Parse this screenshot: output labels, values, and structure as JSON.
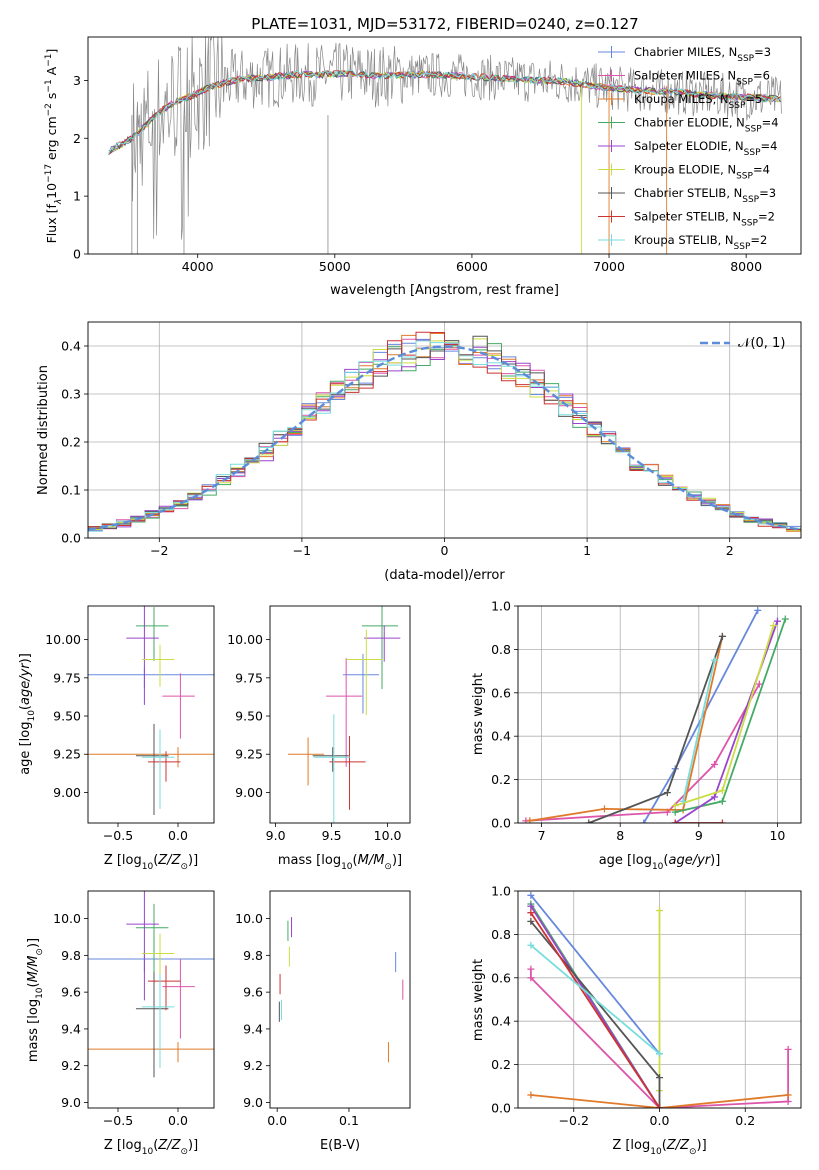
{
  "figure": {
    "title": "PLATE=1031, MJD=53172, FIBERID=0240, z=0.127"
  },
  "colors": {
    "c_miles": "#6688dd",
    "s_miles": "#dd55aa",
    "k_miles": "#e07a2a",
    "c_elodie": "#44aa66",
    "s_elodie": "#9944cc",
    "k_elodie": "#ccdd44",
    "c_stelib": "#555555",
    "s_stelib": "#cc3333",
    "k_stelib": "#77dddd",
    "grey": "#888888",
    "norm": "#5b8dd9",
    "grid": "#b0b0b0"
  },
  "chart_data": [
    {
      "id": "spectrum",
      "type": "line",
      "xlabel": "wavelength [Angstrom, rest frame]",
      "ylabel_parts": [
        "Flux [f",
        "λ",
        "10",
        "−17",
        " erg cm",
        "−2",
        " s",
        "−1",
        " A",
        "−1",
        "]"
      ],
      "xlim": [
        3200,
        8400
      ],
      "ylim": [
        0,
        3.75
      ],
      "xticks": [
        4000,
        5000,
        6000,
        7000,
        8000
      ],
      "yticks": [
        0,
        1,
        2,
        3
      ],
      "grid": false,
      "legend": "right",
      "legend_entries": [
        {
          "pre": "Chabrier MILES, N",
          "sub": "SSP",
          "post": "=3",
          "color": "c_miles"
        },
        {
          "pre": "Salpeter MILES, N",
          "sub": "SSP",
          "post": "=6",
          "color": "s_miles"
        },
        {
          "pre": "Kroupa MILES, N",
          "sub": "SSP",
          "post": "=5",
          "color": "k_miles"
        },
        {
          "pre": "Chabrier ELODIE, N",
          "sub": "SSP",
          "post": "=4",
          "color": "c_elodie"
        },
        {
          "pre": "Salpeter ELODIE, N",
          "sub": "SSP",
          "post": "=4",
          "color": "s_elodie"
        },
        {
          "pre": "Kroupa ELODIE, N",
          "sub": "SSP",
          "post": "=4",
          "color": "k_elodie"
        },
        {
          "pre": "Chabrier STELIB, N",
          "sub": "SSP",
          "post": "=3",
          "color": "c_stelib"
        },
        {
          "pre": "Salpeter STELIB, N",
          "sub": "SSP",
          "post": "=2",
          "color": "s_stelib"
        },
        {
          "pre": "Kroupa STELIB, N",
          "sub": "SSP",
          "post": "=2",
          "color": "k_stelib"
        }
      ],
      "data_points": [
        [
          3350,
          1.78
        ],
        [
          3450,
          1.9
        ],
        [
          3550,
          2.05
        ],
        [
          3650,
          2.3
        ],
        [
          3750,
          2.5
        ],
        [
          3850,
          2.65
        ],
        [
          3950,
          2.72
        ],
        [
          4100,
          2.9
        ],
        [
          4300,
          3.02
        ],
        [
          4500,
          3.05
        ],
        [
          4700,
          3.1
        ],
        [
          4900,
          3.1
        ],
        [
          5100,
          3.12
        ],
        [
          5300,
          3.08
        ],
        [
          5500,
          3.1
        ],
        [
          5700,
          3.1
        ],
        [
          5900,
          3.08
        ],
        [
          6100,
          3.05
        ],
        [
          6300,
          3.02
        ],
        [
          6500,
          3.0
        ],
        [
          6700,
          2.98
        ],
        [
          6900,
          2.9
        ],
        [
          7100,
          2.85
        ],
        [
          7300,
          2.82
        ],
        [
          7500,
          2.8
        ],
        [
          7700,
          2.75
        ],
        [
          7900,
          2.72
        ],
        [
          8100,
          2.7
        ],
        [
          8250,
          2.68
        ]
      ]
    },
    {
      "id": "residuals",
      "type": "line",
      "xlabel": "(data-model)/error",
      "ylabel": "Normed distribution",
      "xlim": [
        -2.5,
        2.5
      ],
      "ylim": [
        0,
        0.45
      ],
      "xticks": [
        -2,
        -1,
        0,
        1,
        2
      ],
      "yticks": [
        0.0,
        0.1,
        0.2,
        0.3,
        0.4
      ],
      "xtick_labels": [
        "−2",
        "−1",
        "0",
        "1",
        "2"
      ],
      "yticks_labels": [
        "0.0",
        "0.1",
        "0.2",
        "0.3",
        "0.4"
      ],
      "grid": true,
      "legend": "top-right",
      "legend_entry": "𝒩(0, 1)",
      "bin_width": 0.1
    },
    {
      "id": "age_Z",
      "type": "scatter",
      "xlabel": "Z [log10(Z/Z⊙)]",
      "ylabel": "age  [log10(age/yr)]",
      "xlim": [
        -0.75,
        0.3
      ],
      "ylim": [
        8.8,
        10.22
      ],
      "xticks": [
        -0.5,
        0.0
      ],
      "yticks": [
        9.0,
        9.25,
        9.5,
        9.75,
        10.0
      ],
      "xtick_labels": [
        "−0.5",
        "0.0"
      ],
      "ytick_labels": [
        "9.00",
        "9.25",
        "9.50",
        "9.75",
        "10.00"
      ]
    },
    {
      "id": "age_mass",
      "type": "scatter",
      "xlabel": "mass [log10(M/M⊙)]",
      "xlim": [
        8.95,
        10.2
      ],
      "ylim": [
        8.8,
        10.22
      ],
      "xticks": [
        9.0,
        9.5,
        10.0
      ],
      "yticks": [
        9.0,
        9.25,
        9.5,
        9.75,
        10.0
      ],
      "xtick_labels": [
        "9.0",
        "9.5",
        "10.0"
      ],
      "ytick_labels": [
        "9.00",
        "9.25",
        "9.50",
        "9.75",
        "10.00"
      ]
    },
    {
      "id": "weight_age",
      "type": "line",
      "xlabel": "age  [log10(age/yr)]",
      "ylabel": "mass weight",
      "xlim": [
        6.7,
        10.3
      ],
      "ylim": [
        0,
        1.0
      ],
      "xticks": [
        7,
        8,
        9,
        10
      ],
      "yticks": [
        0.0,
        0.2,
        0.4,
        0.6,
        0.8,
        1.0
      ],
      "xtick_labels": [
        "7",
        "8",
        "9",
        "10"
      ],
      "ytick_labels": [
        "0.0",
        "0.2",
        "0.4",
        "0.6",
        "0.8",
        "1.0"
      ],
      "grid": true,
      "series": [
        {
          "color": "c_miles",
          "x": [
            8.3,
            8.7,
            9.75
          ],
          "y": [
            0.0,
            0.25,
            0.98
          ]
        },
        {
          "color": "s_miles",
          "x": [
            6.8,
            8.6,
            9.2,
            9.77
          ],
          "y": [
            0.01,
            0.05,
            0.27,
            0.64
          ]
        },
        {
          "color": "k_miles",
          "x": [
            6.85,
            7.8,
            8.8,
            9.3
          ],
          "y": [
            0.01,
            0.065,
            0.06,
            0.86
          ]
        },
        {
          "color": "c_elodie",
          "x": [
            8.7,
            9.3,
            10.1
          ],
          "y": [
            0.05,
            0.1,
            0.94
          ]
        },
        {
          "color": "s_elodie",
          "x": [
            8.7,
            9.2,
            10.0
          ],
          "y": [
            0.0,
            0.12,
            0.93
          ]
        },
        {
          "color": "k_elodie",
          "x": [
            8.7,
            9.3,
            9.95
          ],
          "y": [
            0.08,
            0.15,
            0.91
          ]
        },
        {
          "color": "c_stelib",
          "x": [
            7.6,
            8.6,
            9.3
          ],
          "y": [
            0.0,
            0.14,
            0.86
          ]
        },
        {
          "color": "s_stelib",
          "x": [
            8.7,
            9.3
          ],
          "y": [
            0.0,
            0.0
          ]
        },
        {
          "color": "k_stelib",
          "x": [
            8.8,
            9.2
          ],
          "y": [
            0.1,
            0.75
          ]
        }
      ]
    },
    {
      "id": "mass_Z",
      "type": "scatter",
      "xlabel": "Z [log10(Z/Z⊙)]",
      "ylabel": "mass [log10(M/M⊙)]",
      "xlim": [
        -0.75,
        0.3
      ],
      "ylim": [
        8.97,
        10.15
      ],
      "xticks": [
        -0.5,
        0.0
      ],
      "yticks": [
        9.0,
        9.2,
        9.4,
        9.6,
        9.8,
        10.0
      ],
      "xtick_labels": [
        "−0.5",
        "0.0"
      ],
      "ytick_labels": [
        "9.0",
        "9.2",
        "9.4",
        "9.6",
        "9.8",
        "10.0"
      ]
    },
    {
      "id": "mass_ebv",
      "type": "scatter",
      "xlabel": "E(B-V)",
      "xlim": [
        -0.01,
        0.185
      ],
      "ylim": [
        8.97,
        10.15
      ],
      "xticks": [
        0.0,
        0.1
      ],
      "yticks": [
        9.0,
        9.2,
        9.4,
        9.6,
        9.8,
        10.0
      ],
      "xtick_labels": [
        "0.0",
        "0.1"
      ],
      "ytick_labels": [
        "9.0",
        "9.2",
        "9.4",
        "9.6",
        "9.8",
        "10.0"
      ]
    },
    {
      "id": "weight_Z",
      "type": "line",
      "xlabel": "Z [log10(Z/Z⊙)]",
      "ylabel": "mass weight",
      "xlim": [
        -0.33,
        0.33
      ],
      "ylim": [
        0,
        1.0
      ],
      "xticks": [
        -0.2,
        0.0,
        0.2
      ],
      "yticks": [
        0.0,
        0.2,
        0.4,
        0.6,
        0.8,
        1.0
      ],
      "xtick_labels": [
        "−0.2",
        "0.0",
        "0.2"
      ],
      "ytick_labels": [
        "0.0",
        "0.2",
        "0.4",
        "0.6",
        "0.8",
        "1.0"
      ],
      "grid": true,
      "series": [
        {
          "color": "c_miles",
          "x": [
            -0.3,
            0.0
          ],
          "y": [
            0.98,
            0.25
          ]
        },
        {
          "color": "s_miles",
          "x": [
            -0.3,
            -0.3,
            0.0,
            0.3,
            0.3
          ],
          "y": [
            0.64,
            0.6,
            0.0,
            0.03,
            0.27
          ]
        },
        {
          "color": "k_miles",
          "x": [
            -0.3,
            0.0,
            0.3
          ],
          "y": [
            0.06,
            0.0,
            0.06
          ]
        },
        {
          "color": "c_elodie",
          "x": [
            -0.3,
            0.0
          ],
          "y": [
            0.94,
            0.0
          ]
        },
        {
          "color": "s_elodie",
          "x": [
            -0.3,
            0.0
          ],
          "y": [
            0.93,
            0.0
          ]
        },
        {
          "color": "k_elodie",
          "x": [
            0.0,
            0.0
          ],
          "y": [
            0.91,
            0.08
          ]
        },
        {
          "color": "c_stelib",
          "x": [
            -0.3,
            0.0,
            0.0
          ],
          "y": [
            0.86,
            0.14,
            0.0
          ]
        },
        {
          "color": "s_stelib",
          "x": [
            -0.3,
            0.0
          ],
          "y": [
            0.9,
            0.0
          ]
        },
        {
          "color": "k_stelib",
          "x": [
            -0.3,
            0.0
          ],
          "y": [
            0.75,
            0.25
          ]
        }
      ]
    }
  ],
  "ssp_points": [
    {
      "color": "c_miles",
      "Z": -0.28,
      "age": 9.77,
      "mass": 9.78,
      "ebv": 0.165
    },
    {
      "color": "s_miles",
      "Z": 0.02,
      "age": 9.63,
      "mass": 9.63,
      "ebv": 0.175
    },
    {
      "color": "k_miles",
      "Z": 0.0,
      "age": 9.25,
      "mass": 9.29,
      "ebv": 0.155
    },
    {
      "color": "c_elodie",
      "Z": -0.2,
      "age": 10.09,
      "mass": 9.95,
      "ebv": 0.015
    },
    {
      "color": "s_elodie",
      "Z": -0.28,
      "age": 10.01,
      "mass": 9.97,
      "ebv": 0.02
    },
    {
      "color": "k_elodie",
      "Z": -0.15,
      "age": 9.87,
      "mass": 9.81,
      "ebv": 0.017
    },
    {
      "color": "c_stelib",
      "Z": -0.2,
      "age": 9.24,
      "mass": 9.51,
      "ebv": 0.003
    },
    {
      "color": "s_stelib",
      "Z": -0.1,
      "age": 9.2,
      "mass": 9.66,
      "ebv": 0.004
    },
    {
      "color": "k_stelib",
      "Z": -0.15,
      "age": 9.23,
      "mass": 9.52,
      "ebv": 0.006
    }
  ]
}
